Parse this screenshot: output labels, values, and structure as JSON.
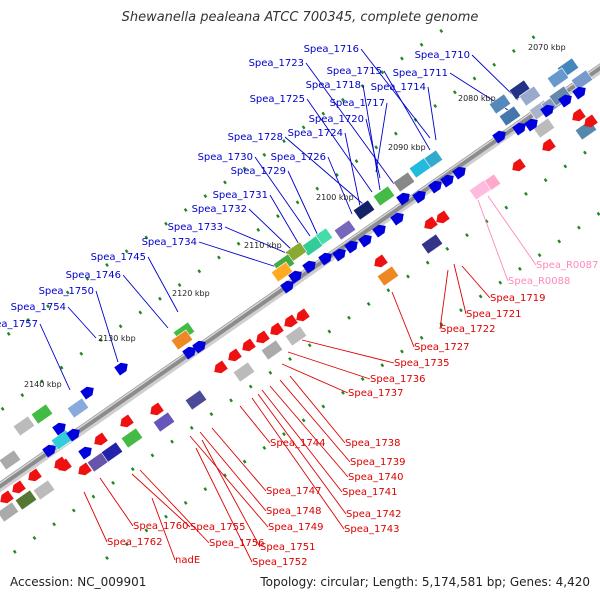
{
  "title": "Shewanella pealeana ATCC 700345, complete genome",
  "footer": {
    "accession": "Accession: NC_009901",
    "info": "Topology: circular; Length: 5,174,581 bp; Genes: 4,420"
  },
  "colors": {
    "forward_labels": "#0000cc",
    "reverse_labels": "#dd0000",
    "rna_labels": "#ff88bb",
    "backbone": "#888888",
    "tick_marks": "#228822"
  },
  "ticks": [
    "2070 kbp",
    "2080 kbp",
    "2090 kbp",
    "2100 kbp",
    "2110 kbp",
    "2120 kbp",
    "2130 kbp",
    "2140 kbp"
  ],
  "forward_labels": [
    "Spea_1716",
    "Spea_1710",
    "Spea_1723",
    "Spea_1715",
    "Spea_1711",
    "Spea_1718",
    "Spea_1714",
    "Spea_1725",
    "Spea_1717",
    "Spea_1720",
    "Spea_1724",
    "Spea_1728",
    "Spea_1726",
    "Spea_1730",
    "Spea_1729",
    "Spea_1731",
    "Spea_1732",
    "Spea_1733",
    "Spea_1734",
    "Spea_1745",
    "Spea_1746",
    "Spea_1750",
    "Spea_1754",
    "Spea_1757"
  ],
  "rna_labels": [
    "Spea_R0087",
    "Spea_R0088"
  ],
  "reverse_labels": [
    "Spea_1719",
    "Spea_1721",
    "Spea_1722",
    "Spea_1727",
    "Spea_1735",
    "Spea_1736",
    "Spea_1737",
    "Spea_1738",
    "Spea_1744",
    "Spea_1739",
    "Spea_1740",
    "Spea_1741",
    "Spea_1747",
    "Spea_1742",
    "Spea_1748",
    "Spea_1743",
    "Spea_1749",
    "Spea_1760",
    "Spea_1755",
    "Spea_1756",
    "Spea_1751",
    "Spea_1762",
    "nadE",
    "Spea_1752"
  ]
}
